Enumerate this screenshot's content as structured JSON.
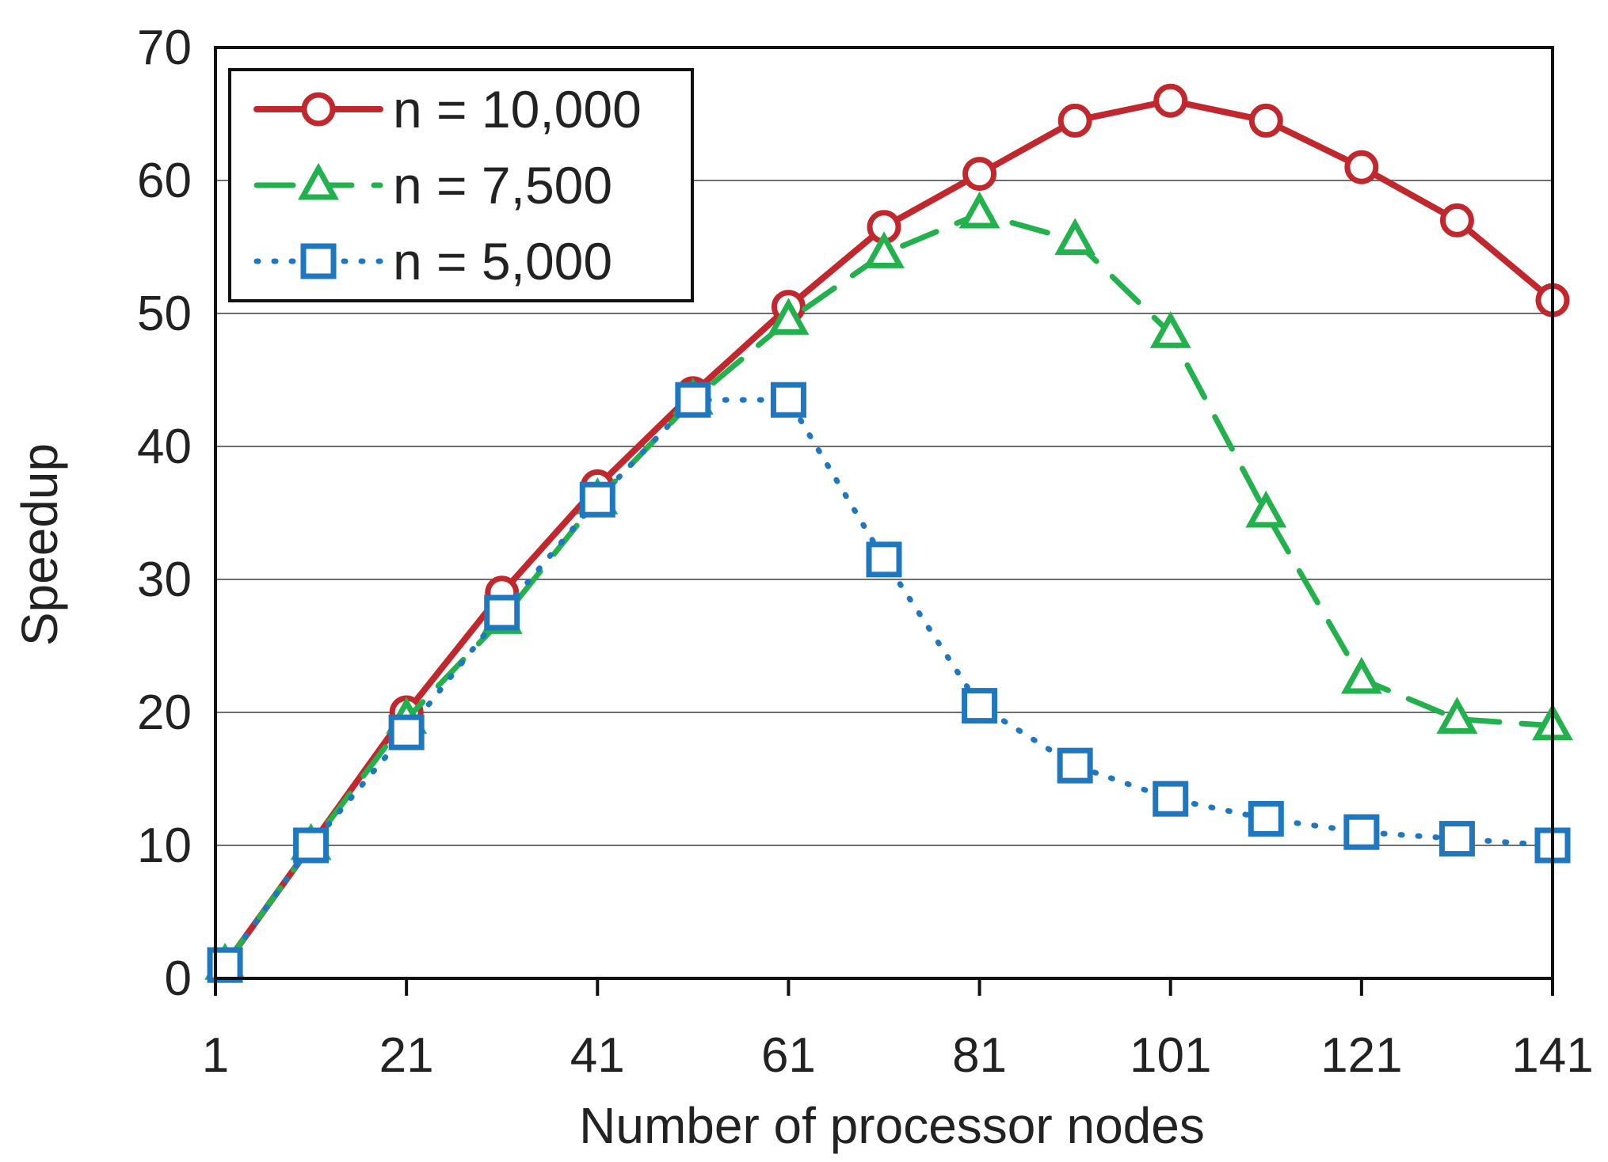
{
  "chart_data": {
    "type": "line",
    "xlabel": "Number of processor nodes",
    "ylabel": "Speedup",
    "xlim": [
      1,
      141
    ],
    "ylim": [
      0,
      70
    ],
    "x_ticks": [
      1,
      21,
      41,
      61,
      81,
      101,
      121,
      141
    ],
    "y_ticks": [
      0,
      10,
      20,
      30,
      40,
      50,
      60,
      70
    ],
    "grid": "horizontal",
    "legend_position": "top-left",
    "series": [
      {
        "name": "n = 10,000",
        "color": "#c0282d",
        "line_style": "solid",
        "marker": "circle",
        "points": [
          [
            2,
            1
          ],
          [
            11,
            10
          ],
          [
            21,
            20
          ],
          [
            31,
            29
          ],
          [
            41,
            37
          ],
          [
            51,
            44
          ],
          [
            61,
            50.5
          ],
          [
            71,
            56.5
          ],
          [
            81,
            60.5
          ],
          [
            91,
            64.5
          ],
          [
            101,
            66
          ],
          [
            111,
            64.5
          ],
          [
            121,
            61
          ],
          [
            131,
            57
          ],
          [
            141,
            51
          ]
        ]
      },
      {
        "name": "n = 7,500",
        "color": "#22b14c",
        "line_style": "dashed",
        "marker": "triangle",
        "points": [
          [
            2,
            1
          ],
          [
            11,
            10
          ],
          [
            21,
            19.5
          ],
          [
            31,
            27
          ],
          [
            41,
            36
          ],
          [
            51,
            43.5
          ],
          [
            61,
            49.5
          ],
          [
            71,
            54.5
          ],
          [
            81,
            57.5
          ],
          [
            91,
            55.5
          ],
          [
            101,
            48.5
          ],
          [
            111,
            35
          ],
          [
            121,
            22.5
          ],
          [
            131,
            19.5
          ],
          [
            141,
            19
          ]
        ]
      },
      {
        "name": "n = 5,000",
        "color": "#1f77c0",
        "line_style": "dotted",
        "marker": "square",
        "points": [
          [
            2,
            1
          ],
          [
            11,
            10
          ],
          [
            21,
            18.5
          ],
          [
            31,
            27.5
          ],
          [
            41,
            36
          ],
          [
            51,
            43.5
          ],
          [
            61,
            43.5
          ],
          [
            71,
            31.5
          ],
          [
            81,
            20.5
          ],
          [
            91,
            16
          ],
          [
            101,
            13.5
          ],
          [
            111,
            12
          ],
          [
            121,
            11
          ],
          [
            131,
            10.5
          ],
          [
            141,
            10
          ]
        ]
      }
    ]
  }
}
